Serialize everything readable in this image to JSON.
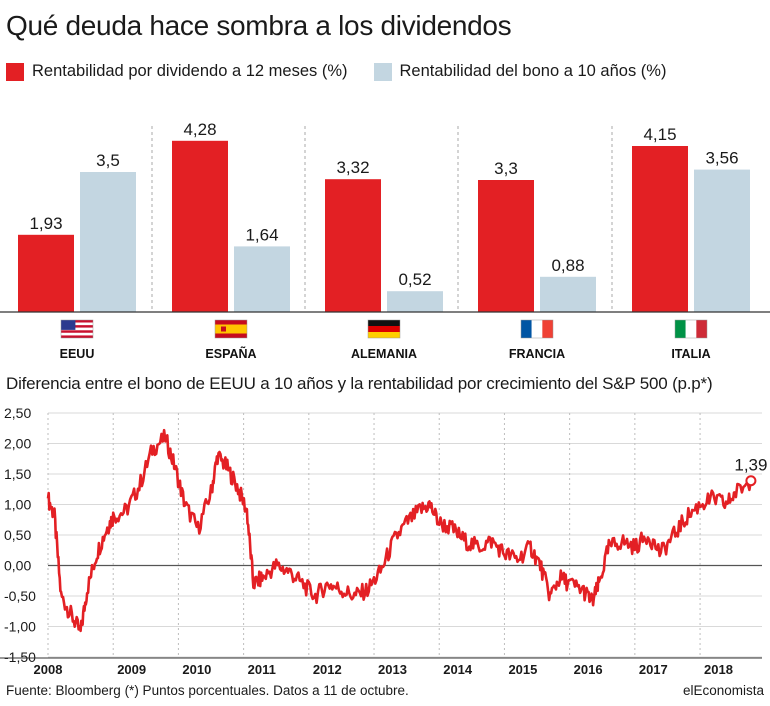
{
  "title": "Qué deuda hace sombra a los dividendos",
  "legend": [
    {
      "label": "Rentabilidad por dividendo a 12 meses (%)",
      "color": "#e32024"
    },
    {
      "label": "Rentabilidad del bono a 10 años (%)",
      "color": "#c3d6e1"
    }
  ],
  "chart_data": [
    {
      "type": "bar",
      "categories": [
        "EEUU",
        "ESPAÑA",
        "ALEMANIA",
        "FRANCIA",
        "ITALIA"
      ],
      "series": [
        {
          "name": "Rentabilidad por dividendo a 12 meses (%)",
          "values": [
            1.93,
            4.28,
            3.32,
            3.3,
            4.15
          ],
          "labels": [
            "1,93",
            "4,28",
            "3,32",
            "3,3",
            "4,15"
          ],
          "color": "#e32024"
        },
        {
          "name": "Rentabilidad del bono a 10 años (%)",
          "values": [
            3.5,
            1.64,
            0.52,
            0.88,
            3.56
          ],
          "labels": [
            "3,5",
            "1,64",
            "0,52",
            "0,88",
            "3,56"
          ],
          "color": "#c3d6e1"
        }
      ],
      "flags": [
        "us-flag-icon",
        "spain-flag-icon",
        "germany-flag-icon",
        "france-flag-icon",
        "italy-flag-icon"
      ],
      "ylim": [
        0,
        4.6
      ]
    },
    {
      "type": "line",
      "title": "Diferencia entre el bono de EEUU a 10 años y la rentabilidad por crecimiento del S&P 500 (p.p*)",
      "x": [
        2008.0,
        2008.1,
        2008.2,
        2008.35,
        2008.5,
        2008.6,
        2008.75,
        2008.9,
        2009.0,
        2009.2,
        2009.4,
        2009.6,
        2009.8,
        2009.95,
        2010.1,
        2010.3,
        2010.5,
        2010.6,
        2010.75,
        2010.9,
        2011.05,
        2011.15,
        2011.3,
        2011.5,
        2011.7,
        2011.9,
        2012.1,
        2012.3,
        2012.5,
        2012.7,
        2012.9,
        2013.1,
        2013.3,
        2013.5,
        2013.7,
        2013.85,
        2014.0,
        2014.2,
        2014.4,
        2014.6,
        2014.8,
        2015.0,
        2015.2,
        2015.4,
        2015.55,
        2015.7,
        2015.85,
        2016.0,
        2016.2,
        2016.35,
        2016.45,
        2016.6,
        2016.8,
        2017.0,
        2017.2,
        2017.4,
        2017.6,
        2017.8,
        2018.0,
        2018.2,
        2018.4,
        2018.55,
        2018.78
      ],
      "y": [
        1.1,
        0.8,
        -0.5,
        -0.8,
        -1.1,
        -0.4,
        0.2,
        0.6,
        0.8,
        0.9,
        1.3,
        1.9,
        2.1,
        1.6,
        1.0,
        0.6,
        1.2,
        1.8,
        1.6,
        1.3,
        0.9,
        -0.3,
        -0.2,
        0.0,
        -0.1,
        -0.3,
        -0.5,
        -0.3,
        -0.4,
        -0.5,
        -0.4,
        -0.1,
        0.4,
        0.7,
        0.9,
        1.0,
        0.7,
        0.6,
        0.4,
        0.3,
        0.4,
        0.2,
        0.1,
        0.3,
        0.0,
        -0.5,
        -0.2,
        -0.3,
        -0.4,
        -0.6,
        -0.3,
        0.3,
        0.4,
        0.3,
        0.5,
        0.2,
        0.5,
        0.8,
        1.0,
        1.1,
        1.0,
        1.2,
        1.39
      ],
      "last_label": "1,39",
      "yticks": [
        "2,50",
        "2,00",
        "1,50",
        "1,00",
        "0,50",
        "0,00",
        "-0,50",
        "-1,00",
        "-1,50"
      ],
      "ytick_values": [
        2.5,
        2.0,
        1.5,
        1.0,
        0.5,
        0.0,
        -0.5,
        -1.0,
        -1.5
      ],
      "xticks": [
        "2008",
        "2009",
        "2010",
        "2011",
        "2012",
        "2013",
        "2014",
        "2015",
        "2016",
        "2017",
        "2018"
      ],
      "xtick_values": [
        2008,
        2009,
        2010,
        2011,
        2012,
        2013,
        2014,
        2015,
        2016,
        2017,
        2018
      ],
      "xlim": [
        2008,
        2018.95
      ],
      "ylim": [
        -1.5,
        2.5
      ]
    }
  ],
  "footer": "Fuente: Bloomberg (*) Puntos porcentuales. Datos a 11 de octubre.",
  "brand": "elEconomista"
}
